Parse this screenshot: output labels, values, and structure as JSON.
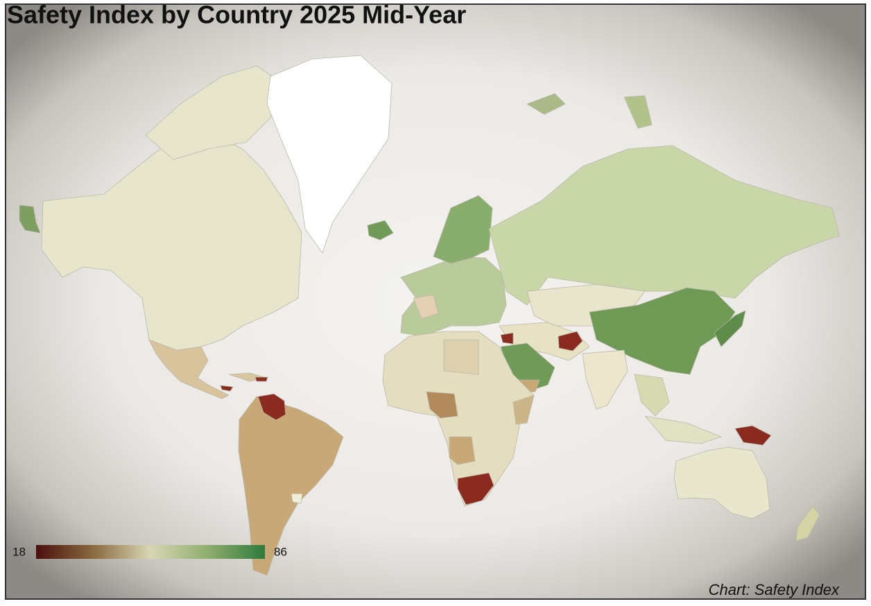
{
  "title": "Safety Index by Country 2025 Mid-Year",
  "colorbar": {
    "min": 18,
    "max": 86,
    "colors": [
      "#4a0f0c",
      "#8a6a3f",
      "#d8d6b4",
      "#8fae6e",
      "#2f7a3c"
    ]
  },
  "source": "Chart: Safety Index"
}
